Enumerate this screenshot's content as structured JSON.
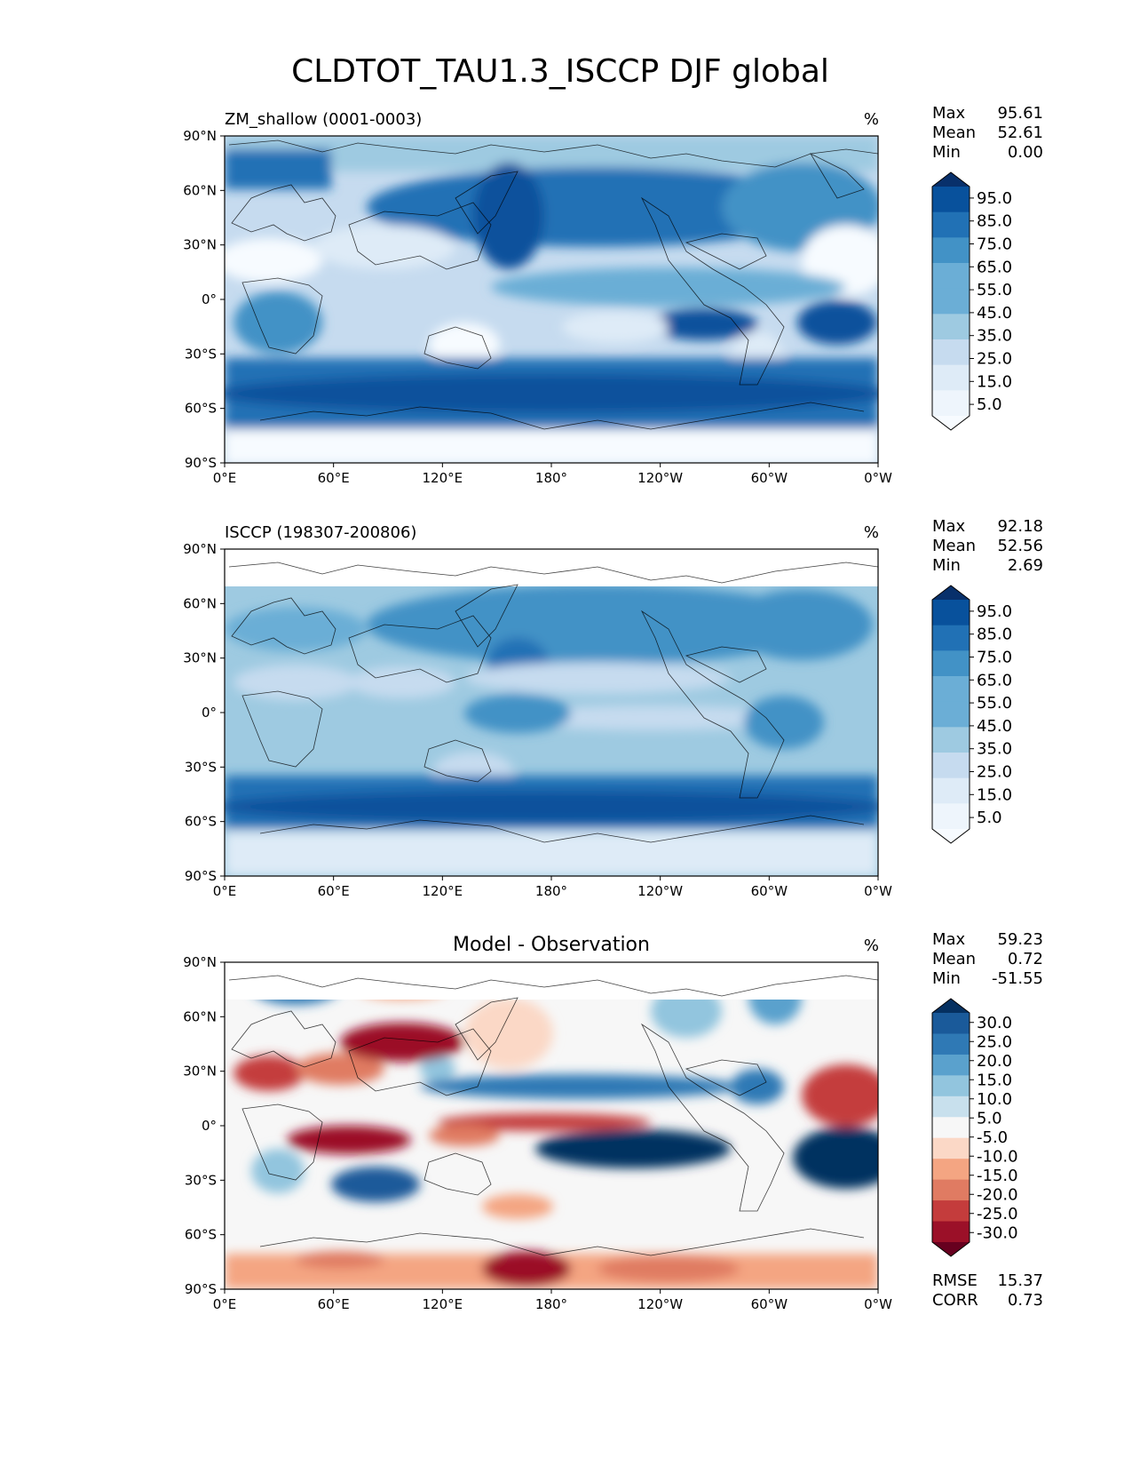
{
  "figure_title": "CLDTOT_TAU1.3_ISCCP DJF global",
  "axis_ticks": {
    "lat": [
      "90°N",
      "60°N",
      "30°N",
      "0°",
      "30°S",
      "60°S",
      "90°S"
    ],
    "lon": [
      "0°E",
      "60°E",
      "120°E",
      "180°",
      "120°W",
      "60°W",
      "0°W"
    ]
  },
  "panels": [
    {
      "name": "model",
      "subtitle": "ZM_shallow (0001-0003)",
      "units": "%",
      "stats": [
        {
          "label": "Max",
          "value": "95.61"
        },
        {
          "label": "Mean",
          "value": "52.61"
        },
        {
          "label": "Min",
          "value": "0.00"
        }
      ],
      "colorbar": {
        "labels": [
          "95.0",
          "85.0",
          "75.0",
          "65.0",
          "55.0",
          "45.0",
          "35.0",
          "25.0",
          "15.0",
          "5.0"
        ],
        "colors": [
          "#08306b",
          "#08519c",
          "#2171b5",
          "#4292c6",
          "#6baed6",
          "#6baed6",
          "#9ecae1",
          "#c6dbef",
          "#deebf7",
          "#eef5fc",
          "#f7fbff"
        ],
        "colormap": "Blues"
      }
    },
    {
      "name": "observation",
      "subtitle": "ISCCP (198307-200806)",
      "units": "%",
      "stats": [
        {
          "label": "Max",
          "value": "92.18"
        },
        {
          "label": "Mean",
          "value": "52.56"
        },
        {
          "label": "Min",
          "value": "2.69"
        }
      ],
      "colorbar": {
        "labels": [
          "95.0",
          "85.0",
          "75.0",
          "65.0",
          "55.0",
          "45.0",
          "35.0",
          "25.0",
          "15.0",
          "5.0"
        ],
        "colors": [
          "#08306b",
          "#08519c",
          "#2171b5",
          "#4292c6",
          "#6baed6",
          "#6baed6",
          "#9ecae1",
          "#c6dbef",
          "#deebf7",
          "#eef5fc",
          "#f7fbff"
        ],
        "colormap": "Blues"
      }
    },
    {
      "name": "difference",
      "subtitle": "Model - Observation",
      "units": "%",
      "stats": [
        {
          "label": "Max",
          "value": "59.23"
        },
        {
          "label": "Mean",
          "value": "0.72"
        },
        {
          "label": "Min",
          "value": "-51.55"
        }
      ],
      "extra_stats": [
        {
          "label": "RMSE",
          "value": "15.37"
        },
        {
          "label": "CORR",
          "value": "0.73"
        }
      ],
      "colorbar": {
        "labels": [
          "30.0",
          "25.0",
          "20.0",
          "15.0",
          "10.0",
          "5.0",
          "-5.0",
          "-10.0",
          "-15.0",
          "-20.0",
          "-25.0",
          "-30.0"
        ],
        "colors": [
          "#053061",
          "#1a5a9a",
          "#2f79b5",
          "#5aa1cd",
          "#92c5de",
          "#c8e0ed",
          "#f7f7f7",
          "#fbd8c6",
          "#f4a582",
          "#e07b62",
          "#c43c3c",
          "#9b1028",
          "#67001f"
        ],
        "colormap": "RdBu_r"
      }
    }
  ]
}
